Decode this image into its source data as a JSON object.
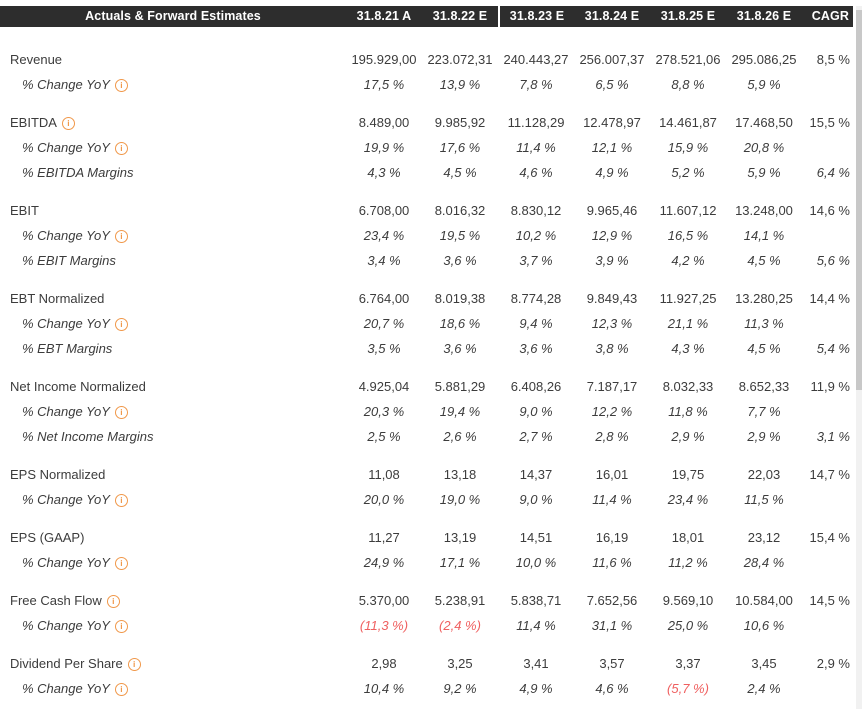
{
  "header": {
    "title": "Actuals & Forward Estimates",
    "columns": [
      "31.8.21 A",
      "31.8.22 E",
      "31.8.23 E",
      "31.8.24 E",
      "31.8.25 E",
      "31.8.26 E",
      "CAGR"
    ]
  },
  "colors": {
    "header_bg": "#2d2d2d",
    "header_text": "#ffffff",
    "body_text": "#3c3c3c",
    "negative_value": "#ef5f5f",
    "info_icon": "#f0984a",
    "scroll_track": "#f1f1f1",
    "scroll_thumb": "#c8c8c8"
  },
  "info_icon_glyph": "i",
  "groups": [
    {
      "rows": [
        {
          "label": "Revenue",
          "info": false,
          "sub": false,
          "cells": [
            "195.929,00",
            "223.072,31",
            "240.443,27",
            "256.007,37",
            "278.521,06",
            "295.086,25",
            "8,5 %"
          ],
          "neg": []
        },
        {
          "label": "% Change YoY",
          "info": true,
          "sub": true,
          "cells": [
            "17,5 %",
            "13,9 %",
            "7,8 %",
            "6,5 %",
            "8,8 %",
            "5,9 %",
            ""
          ],
          "neg": []
        }
      ]
    },
    {
      "rows": [
        {
          "label": "EBITDA",
          "info": true,
          "sub": false,
          "cells": [
            "8.489,00",
            "9.985,92",
            "11.128,29",
            "12.478,97",
            "14.461,87",
            "17.468,50",
            "15,5 %"
          ],
          "neg": []
        },
        {
          "label": "% Change YoY",
          "info": true,
          "sub": true,
          "cells": [
            "19,9 %",
            "17,6 %",
            "11,4 %",
            "12,1 %",
            "15,9 %",
            "20,8 %",
            ""
          ],
          "neg": []
        },
        {
          "label": "% EBITDA Margins",
          "info": false,
          "sub": true,
          "cells": [
            "4,3 %",
            "4,5 %",
            "4,6 %",
            "4,9 %",
            "5,2 %",
            "5,9 %",
            "6,4 %"
          ],
          "neg": []
        }
      ]
    },
    {
      "rows": [
        {
          "label": "EBIT",
          "info": false,
          "sub": false,
          "cells": [
            "6.708,00",
            "8.016,32",
            "8.830,12",
            "9.965,46",
            "11.607,12",
            "13.248,00",
            "14,6 %"
          ],
          "neg": []
        },
        {
          "label": "% Change YoY",
          "info": true,
          "sub": true,
          "cells": [
            "23,4 %",
            "19,5 %",
            "10,2 %",
            "12,9 %",
            "16,5 %",
            "14,1 %",
            ""
          ],
          "neg": []
        },
        {
          "label": "% EBIT Margins",
          "info": false,
          "sub": true,
          "cells": [
            "3,4 %",
            "3,6 %",
            "3,7 %",
            "3,9 %",
            "4,2 %",
            "4,5 %",
            "5,6 %"
          ],
          "neg": []
        }
      ]
    },
    {
      "rows": [
        {
          "label": "EBT Normalized",
          "info": false,
          "sub": false,
          "cells": [
            "6.764,00",
            "8.019,38",
            "8.774,28",
            "9.849,43",
            "11.927,25",
            "13.280,25",
            "14,4 %"
          ],
          "neg": []
        },
        {
          "label": "% Change YoY",
          "info": true,
          "sub": true,
          "cells": [
            "20,7 %",
            "18,6 %",
            "9,4 %",
            "12,3 %",
            "21,1 %",
            "11,3 %",
            ""
          ],
          "neg": []
        },
        {
          "label": "% EBT Margins",
          "info": false,
          "sub": true,
          "cells": [
            "3,5 %",
            "3,6 %",
            "3,6 %",
            "3,8 %",
            "4,3 %",
            "4,5 %",
            "5,4 %"
          ],
          "neg": []
        }
      ]
    },
    {
      "rows": [
        {
          "label": "Net Income Normalized",
          "info": false,
          "sub": false,
          "cells": [
            "4.925,04",
            "5.881,29",
            "6.408,26",
            "7.187,17",
            "8.032,33",
            "8.652,33",
            "11,9 %"
          ],
          "neg": []
        },
        {
          "label": "% Change YoY",
          "info": true,
          "sub": true,
          "cells": [
            "20,3 %",
            "19,4 %",
            "9,0 %",
            "12,2 %",
            "11,8 %",
            "7,7 %",
            ""
          ],
          "neg": []
        },
        {
          "label": "% Net Income Margins",
          "info": false,
          "sub": true,
          "cells": [
            "2,5 %",
            "2,6 %",
            "2,7 %",
            "2,8 %",
            "2,9 %",
            "2,9 %",
            "3,1 %"
          ],
          "neg": []
        }
      ]
    },
    {
      "rows": [
        {
          "label": "EPS Normalized",
          "info": false,
          "sub": false,
          "cells": [
            "11,08",
            "13,18",
            "14,37",
            "16,01",
            "19,75",
            "22,03",
            "14,7 %"
          ],
          "neg": []
        },
        {
          "label": "% Change YoY",
          "info": true,
          "sub": true,
          "cells": [
            "20,0 %",
            "19,0 %",
            "9,0 %",
            "11,4 %",
            "23,4 %",
            "11,5 %",
            ""
          ],
          "neg": []
        }
      ]
    },
    {
      "rows": [
        {
          "label": "EPS (GAAP)",
          "info": false,
          "sub": false,
          "cells": [
            "11,27",
            "13,19",
            "14,51",
            "16,19",
            "18,01",
            "23,12",
            "15,4 %"
          ],
          "neg": []
        },
        {
          "label": "% Change YoY",
          "info": true,
          "sub": true,
          "cells": [
            "24,9 %",
            "17,1 %",
            "10,0 %",
            "11,6 %",
            "11,2 %",
            "28,4 %",
            ""
          ],
          "neg": []
        }
      ]
    },
    {
      "rows": [
        {
          "label": "Free Cash Flow",
          "info": true,
          "sub": false,
          "cells": [
            "5.370,00",
            "5.238,91",
            "5.838,71",
            "7.652,56",
            "9.569,10",
            "10.584,00",
            "14,5 %"
          ],
          "neg": []
        },
        {
          "label": "% Change YoY",
          "info": true,
          "sub": true,
          "cells": [
            "(11,3 %)",
            "(2,4 %)",
            "11,4 %",
            "31,1 %",
            "25,0 %",
            "10,6 %",
            ""
          ],
          "neg": [
            0,
            1
          ]
        }
      ]
    },
    {
      "rows": [
        {
          "label": "Dividend Per Share",
          "info": true,
          "sub": false,
          "cells": [
            "2,98",
            "3,25",
            "3,41",
            "3,57",
            "3,37",
            "3,45",
            "2,9 %"
          ],
          "neg": []
        },
        {
          "label": "% Change YoY",
          "info": true,
          "sub": true,
          "cells": [
            "10,4 %",
            "9,2 %",
            "4,9 %",
            "4,6 %",
            "(5,7 %)",
            "2,4 %",
            ""
          ],
          "neg": [
            4
          ]
        }
      ]
    }
  ]
}
